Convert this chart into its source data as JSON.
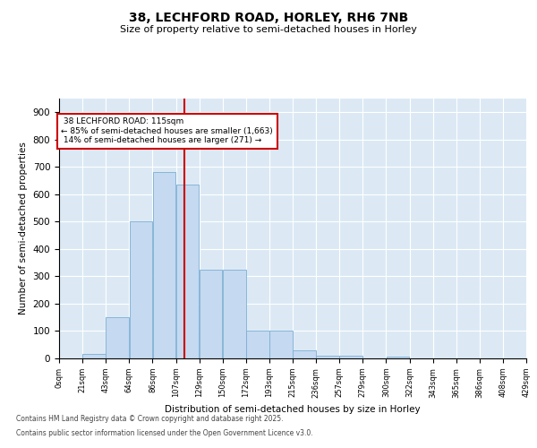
{
  "title": "38, LECHFORD ROAD, HORLEY, RH6 7NB",
  "subtitle": "Size of property relative to semi-detached houses in Horley",
  "xlabel": "Distribution of semi-detached houses by size in Horley",
  "ylabel": "Number of semi-detached properties",
  "bin_labels": [
    "0sqm",
    "21sqm",
    "43sqm",
    "64sqm",
    "86sqm",
    "107sqm",
    "129sqm",
    "150sqm",
    "172sqm",
    "193sqm",
    "215sqm",
    "236sqm",
    "257sqm",
    "279sqm",
    "300sqm",
    "322sqm",
    "343sqm",
    "365sqm",
    "386sqm",
    "408sqm",
    "429sqm"
  ],
  "bar_values": [
    0,
    15,
    150,
    500,
    680,
    635,
    325,
    325,
    100,
    100,
    30,
    10,
    10,
    0,
    5,
    0,
    0,
    0,
    0,
    0
  ],
  "bar_color": "#c5d9f0",
  "bar_edge_color": "#7bafd4",
  "property_size": 115,
  "property_label": "38 LECHFORD ROAD: 115sqm",
  "pct_smaller": 85,
  "count_smaller": "1,663",
  "pct_larger": 14,
  "count_larger": "271",
  "vline_color": "#cc0000",
  "annotation_box_color": "#cc0000",
  "ylim": [
    0,
    950
  ],
  "yticks": [
    0,
    100,
    200,
    300,
    400,
    500,
    600,
    700,
    800,
    900
  ],
  "background_color": "#dce9f5",
  "footer1": "Contains HM Land Registry data © Crown copyright and database right 2025.",
  "footer2": "Contains public sector information licensed under the Open Government Licence v3.0.",
  "bin_width": 21.5
}
